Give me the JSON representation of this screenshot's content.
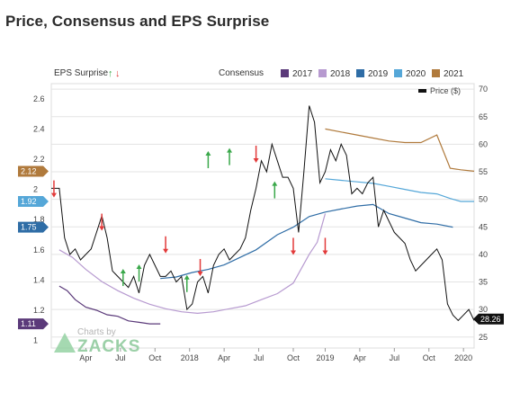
{
  "page": {
    "title": "Price, Consensus and EPS Surprise"
  },
  "legend": {
    "eps_surprise_label": "EPS Surprise",
    "consensus_label": "Consensus",
    "price_label": "Price ($)",
    "years": [
      {
        "label": "2017",
        "color": "#5b3a7a"
      },
      {
        "label": "2018",
        "color": "#b79ad0"
      },
      {
        "label": "2019",
        "color": "#2f6da6"
      },
      {
        "label": "2020",
        "color": "#55a7d8"
      },
      {
        "label": "2021",
        "color": "#b07a3c"
      }
    ]
  },
  "watermark": {
    "prefix": "Charts by",
    "brand": "ZACKS"
  },
  "chart_data": {
    "type": "line",
    "x_ticks": [
      "Apr",
      "Jul",
      "Oct",
      "2018",
      "Apr",
      "Jul",
      "Oct",
      "2019",
      "Apr",
      "Jul",
      "Oct",
      "2020"
    ],
    "left_axis": {
      "label": "EPS Surprise / Consensus",
      "ticks": [
        "2.6",
        "2.4",
        "2.2",
        "2",
        "1.8",
        "1.6",
        "1.4",
        "1.2",
        "1"
      ],
      "range": [
        0.95,
        2.7
      ]
    },
    "right_axis": {
      "label": "Price ($)",
      "ticks": [
        "70",
        "65",
        "60",
        "55",
        "50",
        "45",
        "40",
        "35",
        "30",
        "25"
      ],
      "range": [
        23,
        71
      ]
    },
    "badges": [
      {
        "label": "2.12",
        "value": 2.12,
        "color": "#b07a3c"
      },
      {
        "label": "1.92",
        "value": 1.92,
        "color": "#55a7d8"
      },
      {
        "label": "1.75",
        "value": 1.75,
        "color": "#2f6da6"
      },
      {
        "label": "1.11",
        "value": 1.11,
        "color": "#5b3a7a"
      }
    ],
    "price_badge": {
      "label": "28.26",
      "value": 28.26
    },
    "price_series": {
      "name": "Price ($)",
      "color": "#111111",
      "points": [
        [
          0,
          52
        ],
        [
          3,
          52
        ],
        [
          5,
          43
        ],
        [
          7,
          40
        ],
        [
          9,
          41
        ],
        [
          11,
          39
        ],
        [
          13,
          40
        ],
        [
          15,
          41
        ],
        [
          17,
          44
        ],
        [
          19,
          47
        ],
        [
          21,
          43
        ],
        [
          23,
          37
        ],
        [
          25,
          36
        ],
        [
          27,
          35
        ],
        [
          29,
          34
        ],
        [
          31,
          36
        ],
        [
          33,
          33
        ],
        [
          35,
          38
        ],
        [
          37,
          40
        ],
        [
          39,
          38
        ],
        [
          41,
          36
        ],
        [
          43,
          36
        ],
        [
          45,
          37
        ],
        [
          47,
          35
        ],
        [
          49,
          36
        ],
        [
          51,
          30
        ],
        [
          53,
          31
        ],
        [
          55,
          35
        ],
        [
          57,
          36
        ],
        [
          59,
          33
        ],
        [
          61,
          38
        ],
        [
          63,
          40
        ],
        [
          65,
          41
        ],
        [
          67,
          39
        ],
        [
          69,
          40
        ],
        [
          71,
          41
        ],
        [
          73,
          43
        ],
        [
          75,
          48
        ],
        [
          77,
          52
        ],
        [
          79,
          57
        ],
        [
          81,
          55
        ],
        [
          83,
          60
        ],
        [
          85,
          57
        ],
        [
          87,
          54
        ],
        [
          89,
          54
        ],
        [
          91,
          52
        ],
        [
          93,
          44
        ],
        [
          95,
          55
        ],
        [
          97,
          67
        ],
        [
          99,
          64
        ],
        [
          101,
          53
        ],
        [
          103,
          55
        ],
        [
          105,
          59
        ],
        [
          107,
          57
        ],
        [
          109,
          60
        ],
        [
          111,
          58
        ],
        [
          113,
          51
        ],
        [
          115,
          52
        ],
        [
          117,
          51
        ],
        [
          119,
          53
        ],
        [
          121,
          54
        ],
        [
          123,
          45
        ],
        [
          125,
          48
        ],
        [
          127,
          46
        ],
        [
          129,
          44
        ],
        [
          131,
          43
        ],
        [
          133,
          42
        ],
        [
          135,
          39
        ],
        [
          137,
          37
        ],
        [
          139,
          38
        ],
        [
          141,
          39
        ],
        [
          143,
          40
        ],
        [
          145,
          41
        ],
        [
          147,
          39
        ],
        [
          149,
          31
        ],
        [
          151,
          29
        ],
        [
          153,
          28
        ],
        [
          155,
          29
        ],
        [
          157,
          30
        ],
        [
          159,
          28
        ]
      ]
    },
    "consensus_series": [
      {
        "name": "2017",
        "color": "#5b3a7a",
        "points": [
          [
            3,
            1.36
          ],
          [
            6,
            1.33
          ],
          [
            9,
            1.27
          ],
          [
            13,
            1.22
          ],
          [
            17,
            1.2
          ],
          [
            21,
            1.17
          ],
          [
            25,
            1.16
          ],
          [
            29,
            1.13
          ],
          [
            33,
            1.12
          ],
          [
            37,
            1.11
          ],
          [
            41,
            1.11
          ]
        ]
      },
      {
        "name": "2018",
        "color": "#b79ad0",
        "points": [
          [
            3,
            1.6
          ],
          [
            8,
            1.55
          ],
          [
            13,
            1.47
          ],
          [
            19,
            1.39
          ],
          [
            25,
            1.33
          ],
          [
            31,
            1.28
          ],
          [
            37,
            1.24
          ],
          [
            43,
            1.21
          ],
          [
            49,
            1.19
          ],
          [
            55,
            1.18
          ],
          [
            61,
            1.19
          ],
          [
            67,
            1.21
          ],
          [
            73,
            1.23
          ],
          [
            79,
            1.27
          ],
          [
            85,
            1.31
          ],
          [
            91,
            1.38
          ],
          [
            97,
            1.57
          ],
          [
            100,
            1.65
          ],
          [
            103,
            1.84
          ]
        ]
      },
      {
        "name": "2019",
        "color": "#2f6da6",
        "points": [
          [
            41,
            1.41
          ],
          [
            47,
            1.42
          ],
          [
            53,
            1.45
          ],
          [
            59,
            1.47
          ],
          [
            65,
            1.5
          ],
          [
            71,
            1.55
          ],
          [
            77,
            1.6
          ],
          [
            85,
            1.7
          ],
          [
            91,
            1.75
          ],
          [
            97,
            1.82
          ],
          [
            103,
            1.85
          ],
          [
            109,
            1.87
          ],
          [
            115,
            1.89
          ],
          [
            121,
            1.9
          ],
          [
            127,
            1.84
          ],
          [
            133,
            1.81
          ],
          [
            139,
            1.78
          ],
          [
            145,
            1.77
          ],
          [
            151,
            1.75
          ]
        ]
      },
      {
        "name": "2020",
        "color": "#55a7d8",
        "points": [
          [
            103,
            2.07
          ],
          [
            109,
            2.06
          ],
          [
            115,
            2.05
          ],
          [
            121,
            2.04
          ],
          [
            127,
            2.02
          ],
          [
            133,
            2.0
          ],
          [
            139,
            1.98
          ],
          [
            145,
            1.97
          ],
          [
            150,
            1.94
          ],
          [
            154,
            1.92
          ],
          [
            159,
            1.92
          ]
        ]
      },
      {
        "name": "2021",
        "color": "#b07a3c",
        "points": [
          [
            103,
            2.4
          ],
          [
            109,
            2.38
          ],
          [
            115,
            2.36
          ],
          [
            121,
            2.34
          ],
          [
            127,
            2.32
          ],
          [
            133,
            2.31
          ],
          [
            139,
            2.31
          ],
          [
            145,
            2.36
          ],
          [
            150,
            2.14
          ],
          [
            154,
            2.13
          ],
          [
            159,
            2.12
          ]
        ]
      }
    ],
    "eps_surprise_markers": [
      {
        "x": 1,
        "y": 2.0,
        "dir": "down",
        "color": "#e23a3a"
      },
      {
        "x": 19,
        "y": 1.78,
        "dir": "down",
        "color": "#e23a3a"
      },
      {
        "x": 27,
        "y": 1.42,
        "dir": "up",
        "color": "#3aa84a"
      },
      {
        "x": 33,
        "y": 1.45,
        "dir": "up",
        "color": "#3aa84a"
      },
      {
        "x": 43,
        "y": 1.63,
        "dir": "down",
        "color": "#e23a3a"
      },
      {
        "x": 51,
        "y": 1.38,
        "dir": "up",
        "color": "#3aa84a"
      },
      {
        "x": 56,
        "y": 1.48,
        "dir": "down",
        "color": "#e23a3a"
      },
      {
        "x": 59,
        "y": 2.2,
        "dir": "up",
        "color": "#3aa84a"
      },
      {
        "x": 67,
        "y": 2.22,
        "dir": "up",
        "color": "#3aa84a"
      },
      {
        "x": 77,
        "y": 2.23,
        "dir": "down",
        "color": "#e23a3a"
      },
      {
        "x": 84,
        "y": 2.0,
        "dir": "up",
        "color": "#3aa84a"
      },
      {
        "x": 91,
        "y": 1.62,
        "dir": "down",
        "color": "#e23a3a"
      },
      {
        "x": 103,
        "y": 1.62,
        "dir": "down",
        "color": "#e23a3a"
      }
    ],
    "grid": true
  }
}
